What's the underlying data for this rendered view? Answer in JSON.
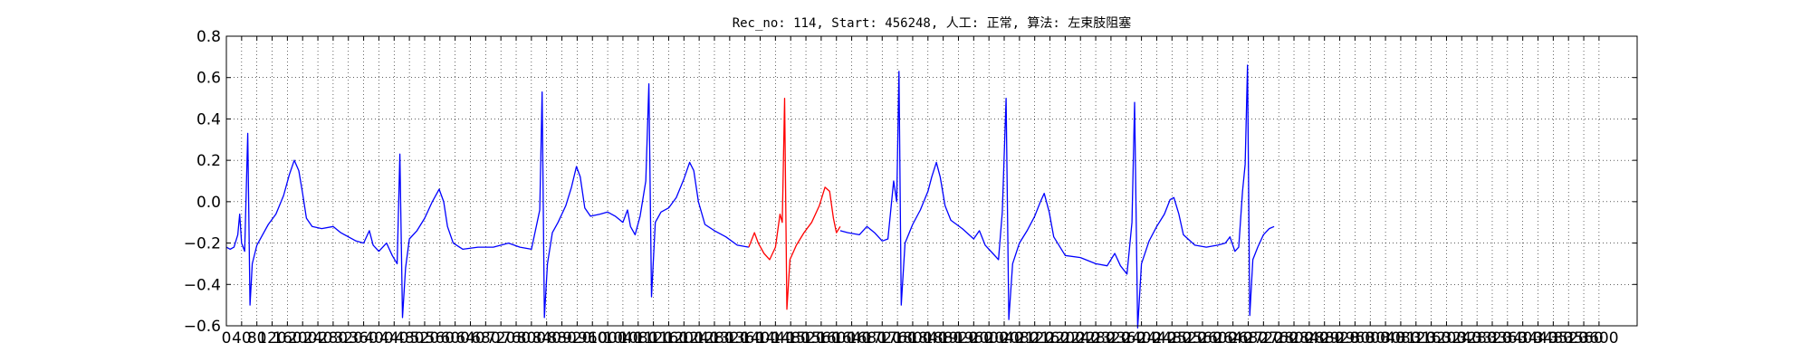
{
  "chart_data": {
    "type": "line",
    "title": "Rec_no: 114, Start: 456248, 人工: 正常, 算法: 左束肢阻塞",
    "xlabel": "",
    "ylabel": "",
    "xlim": [
      0,
      3700
    ],
    "ylim": [
      -0.6,
      0.8
    ],
    "grid": true,
    "x_ticks": [
      0,
      40,
      80,
      120,
      160,
      200,
      240,
      280,
      320,
      360,
      400,
      440,
      480,
      520,
      560,
      600,
      640,
      680,
      720,
      760,
      800,
      840,
      880,
      920,
      960,
      1000,
      1040,
      1080,
      1120,
      1160,
      1200,
      1240,
      1280,
      1320,
      1360,
      1400,
      1440,
      1480,
      1520,
      1560,
      1600,
      1640,
      1680,
      1720,
      1760,
      1800,
      1840,
      1880,
      1920,
      1960,
      2000,
      2040,
      2080,
      2120,
      2160,
      2200,
      2240,
      2280,
      2320,
      2360,
      2400,
      2440,
      2480,
      2520,
      2560,
      2600,
      2640,
      2680,
      2720,
      2760,
      2800,
      2840,
      2880,
      2920,
      2960,
      3000,
      3040,
      3080,
      3120,
      3160,
      3200,
      3240,
      3280,
      3320,
      3360,
      3400,
      3440,
      3480,
      3520,
      3560,
      3600
    ],
    "x_tick_labels": [
      "0",
      "40",
      "80",
      "120",
      "160",
      "200",
      "240",
      "280",
      "320",
      "360",
      "400",
      "440",
      "480",
      "520",
      "560",
      "600",
      "640",
      "680",
      "720",
      "760",
      "800",
      "840",
      "880",
      "920",
      "960",
      "1000",
      "1040",
      "1080",
      "1120",
      "1160",
      "1200",
      "1240",
      "1280",
      "1320",
      "1360",
      "1400",
      "1440",
      "1480",
      "1520",
      "1560",
      "1600",
      "1640",
      "1680",
      "1720",
      "1760",
      "1800",
      "1840",
      "1880",
      "1920",
      "1960",
      "2000",
      "2040",
      "2080",
      "2120",
      "2160",
      "2200",
      "2240",
      "2280",
      "2320",
      "2360",
      "2400",
      "2440",
      "2480",
      "2520",
      "2560",
      "2600",
      "2640",
      "2680",
      "2720",
      "2760",
      "2800",
      "2840",
      "2880",
      "2920",
      "2960",
      "3000",
      "3040",
      "3080",
      "3120",
      "3160",
      "3200",
      "3240",
      "3280",
      "3320",
      "3360",
      "3400",
      "3440",
      "3480",
      "3520",
      "3560",
      "3600"
    ],
    "y_ticks": [
      -0.6,
      -0.4,
      -0.2,
      0.0,
      0.2,
      0.4,
      0.6,
      0.8
    ],
    "y_tick_labels": [
      "−0.6",
      "−0.4",
      "−0.2",
      "0.0",
      "0.2",
      "0.4",
      "0.6",
      "0.8"
    ],
    "series": [
      {
        "color": "#0000ff",
        "points": [
          [
            0,
            -0.22
          ],
          [
            10,
            -0.23
          ],
          [
            20,
            -0.22
          ],
          [
            30,
            -0.16
          ],
          [
            35,
            -0.06
          ],
          [
            40,
            -0.2
          ],
          [
            48,
            -0.24
          ],
          [
            56,
            0.33
          ],
          [
            62,
            -0.5
          ],
          [
            68,
            -0.3
          ],
          [
            80,
            -0.21
          ],
          [
            95,
            -0.16
          ],
          [
            110,
            -0.11
          ],
          [
            130,
            -0.06
          ],
          [
            150,
            0.03
          ],
          [
            165,
            0.13
          ],
          [
            178,
            0.2
          ],
          [
            190,
            0.15
          ],
          [
            200,
            0.04
          ],
          [
            210,
            -0.08
          ],
          [
            225,
            -0.12
          ],
          [
            250,
            -0.13
          ],
          [
            280,
            -0.12
          ],
          [
            300,
            -0.15
          ],
          [
            320,
            -0.17
          ],
          [
            340,
            -0.19
          ],
          [
            360,
            -0.2
          ],
          [
            375,
            -0.14
          ],
          [
            385,
            -0.21
          ],
          [
            400,
            -0.24
          ],
          [
            420,
            -0.2
          ],
          [
            435,
            -0.26
          ],
          [
            448,
            -0.3
          ],
          [
            455,
            0.23
          ],
          [
            462,
            -0.56
          ],
          [
            470,
            -0.32
          ],
          [
            480,
            -0.18
          ],
          [
            500,
            -0.14
          ],
          [
            520,
            -0.08
          ],
          [
            540,
            0.0
          ],
          [
            558,
            0.06
          ],
          [
            570,
            0.0
          ],
          [
            580,
            -0.12
          ],
          [
            595,
            -0.2
          ],
          [
            620,
            -0.23
          ],
          [
            660,
            -0.22
          ],
          [
            700,
            -0.22
          ],
          [
            740,
            -0.2
          ],
          [
            770,
            -0.22
          ],
          [
            800,
            -0.23
          ],
          [
            815,
            -0.1
          ],
          [
            822,
            -0.04
          ],
          [
            828,
            0.53
          ],
          [
            834,
            -0.56
          ],
          [
            842,
            -0.3
          ],
          [
            855,
            -0.15
          ],
          [
            870,
            -0.1
          ],
          [
            890,
            -0.02
          ],
          [
            905,
            0.07
          ],
          [
            918,
            0.17
          ],
          [
            928,
            0.12
          ],
          [
            940,
            -0.03
          ],
          [
            955,
            -0.07
          ],
          [
            980,
            -0.06
          ],
          [
            1000,
            -0.05
          ],
          [
            1020,
            -0.07
          ],
          [
            1040,
            -0.1
          ],
          [
            1052,
            -0.04
          ],
          [
            1060,
            -0.12
          ],
          [
            1072,
            -0.16
          ],
          [
            1085,
            -0.07
          ],
          [
            1100,
            0.1
          ],
          [
            1108,
            0.57
          ],
          [
            1115,
            -0.46
          ],
          [
            1125,
            -0.1
          ],
          [
            1140,
            -0.05
          ],
          [
            1160,
            -0.03
          ],
          [
            1180,
            0.02
          ],
          [
            1200,
            0.11
          ],
          [
            1215,
            0.19
          ],
          [
            1226,
            0.15
          ],
          [
            1238,
            0.0
          ],
          [
            1255,
            -0.11
          ],
          [
            1280,
            -0.14
          ],
          [
            1310,
            -0.17
          ],
          [
            1340,
            -0.21
          ],
          [
            1370,
            -0.22
          ]
        ]
      },
      {
        "color": "#ff0000",
        "points": [
          [
            1370,
            -0.22
          ],
          [
            1385,
            -0.15
          ],
          [
            1395,
            -0.2
          ],
          [
            1410,
            -0.25
          ],
          [
            1425,
            -0.28
          ],
          [
            1440,
            -0.22
          ],
          [
            1452,
            -0.06
          ],
          [
            1458,
            -0.1
          ],
          [
            1464,
            0.5
          ],
          [
            1470,
            -0.52
          ],
          [
            1478,
            -0.28
          ],
          [
            1495,
            -0.21
          ],
          [
            1515,
            -0.15
          ],
          [
            1535,
            -0.1
          ],
          [
            1555,
            -0.02
          ],
          [
            1570,
            0.07
          ],
          [
            1582,
            0.05
          ],
          [
            1592,
            -0.08
          ],
          [
            1600,
            -0.15
          ],
          [
            1610,
            -0.12
          ]
        ]
      },
      {
        "color": "#0000ff",
        "points": [
          [
            1610,
            -0.14
          ],
          [
            1630,
            -0.15
          ],
          [
            1660,
            -0.16
          ],
          [
            1680,
            -0.12
          ],
          [
            1700,
            -0.15
          ],
          [
            1720,
            -0.19
          ],
          [
            1735,
            -0.18
          ],
          [
            1750,
            0.1
          ],
          [
            1758,
            0.0
          ],
          [
            1764,
            0.63
          ],
          [
            1770,
            -0.5
          ],
          [
            1780,
            -0.2
          ],
          [
            1800,
            -0.11
          ],
          [
            1820,
            -0.04
          ],
          [
            1840,
            0.05
          ],
          [
            1850,
            0.12
          ],
          [
            1862,
            0.19
          ],
          [
            1872,
            0.12
          ],
          [
            1885,
            -0.02
          ],
          [
            1900,
            -0.09
          ],
          [
            1930,
            -0.13
          ],
          [
            1960,
            -0.18
          ],
          [
            1975,
            -0.14
          ],
          [
            1990,
            -0.21
          ],
          [
            2010,
            -0.25
          ],
          [
            2025,
            -0.28
          ],
          [
            2035,
            -0.05
          ],
          [
            2045,
            0.5
          ],
          [
            2052,
            -0.57
          ],
          [
            2062,
            -0.3
          ],
          [
            2080,
            -0.2
          ],
          [
            2100,
            -0.14
          ],
          [
            2120,
            -0.07
          ],
          [
            2135,
            0.0
          ],
          [
            2145,
            0.04
          ],
          [
            2158,
            -0.05
          ],
          [
            2170,
            -0.17
          ],
          [
            2200,
            -0.26
          ],
          [
            2240,
            -0.27
          ],
          [
            2280,
            -0.3
          ],
          [
            2310,
            -0.31
          ],
          [
            2330,
            -0.25
          ],
          [
            2345,
            -0.31
          ],
          [
            2362,
            -0.35
          ],
          [
            2375,
            -0.1
          ],
          [
            2382,
            0.48
          ],
          [
            2390,
            -0.61
          ],
          [
            2400,
            -0.3
          ],
          [
            2420,
            -0.19
          ],
          [
            2440,
            -0.12
          ],
          [
            2460,
            -0.06
          ],
          [
            2475,
            0.01
          ],
          [
            2485,
            0.02
          ],
          [
            2498,
            -0.06
          ],
          [
            2510,
            -0.16
          ],
          [
            2540,
            -0.21
          ],
          [
            2570,
            -0.22
          ],
          [
            2600,
            -0.21
          ],
          [
            2620,
            -0.2
          ],
          [
            2632,
            -0.17
          ],
          [
            2645,
            -0.24
          ],
          [
            2655,
            -0.22
          ],
          [
            2665,
            0.05
          ],
          [
            2672,
            0.18
          ],
          [
            2678,
            0.66
          ],
          [
            2684,
            -0.55
          ],
          [
            2692,
            -0.28
          ],
          [
            2705,
            -0.22
          ],
          [
            2720,
            -0.16
          ],
          [
            2735,
            -0.13
          ],
          [
            2748,
            -0.12
          ]
        ]
      }
    ]
  }
}
